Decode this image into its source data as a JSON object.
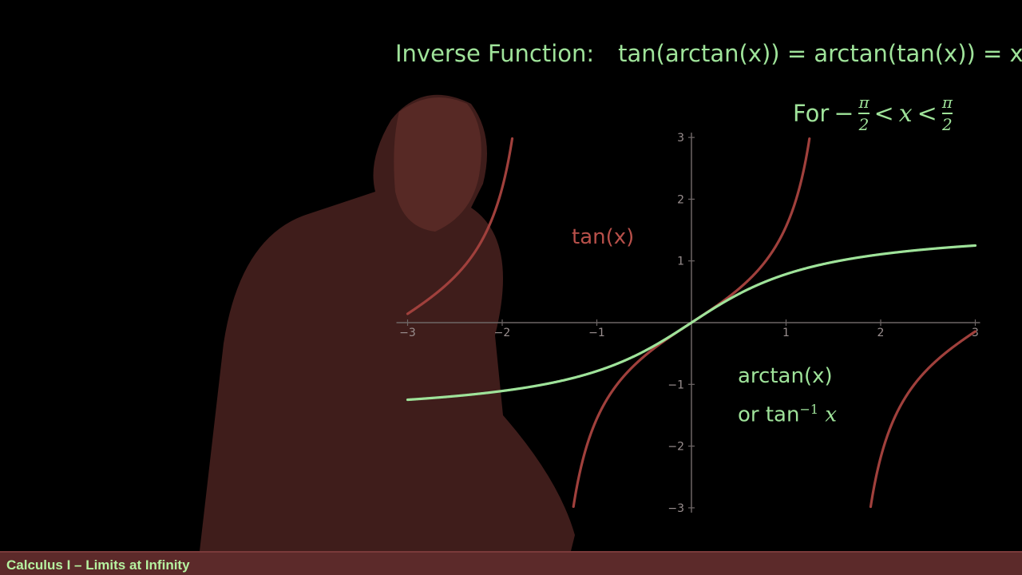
{
  "header": {
    "inverse_label": "Inverse Function:",
    "identity": "tan(arctan(x)) = arctan(tan(x)) = x",
    "domain_for": "For",
    "domain_minus": "−",
    "domain_lt1": "<",
    "domain_var": "x",
    "domain_lt2": "<",
    "domain_num": "π",
    "domain_den": "2"
  },
  "labels": {
    "tan": "tan(x)",
    "arctan_line1": "arctan(x)",
    "arctan_line2_prefix": "or tan",
    "arctan_line2_sup": "−1",
    "arctan_line2_var": "x"
  },
  "footer": {
    "title": "Calculus I – Limits at Infinity"
  },
  "colors": {
    "tan_curve": "#a0403c",
    "arctan_curve": "#9fe39a",
    "axis": "#6e6666"
  },
  "chart_data": {
    "type": "line",
    "xlim": [
      -3,
      3
    ],
    "ylim": [
      -3,
      3
    ],
    "x_ticks": [
      -3,
      -2,
      -1,
      1,
      2,
      3
    ],
    "y_ticks": [
      -3,
      -2,
      -1,
      1,
      2,
      3
    ],
    "x_tick_labels": [
      "−3",
      "−2",
      "−1",
      "1",
      "2",
      "3"
    ],
    "y_tick_labels": [
      "−3",
      "−2",
      "−1",
      "1",
      "2",
      "3"
    ],
    "grid": false,
    "series": [
      {
        "name": "tan(x)",
        "function": "tan",
        "color": "#a0403c",
        "x": [
          -3.0,
          -2.5,
          -2.0,
          -1.5708,
          -1.25,
          -1.0,
          -0.5,
          0.0,
          0.5,
          1.0,
          1.25,
          1.5708,
          2.0,
          2.5,
          3.0
        ],
        "y": [
          0.14,
          0.75,
          2.19,
          null,
          -3.01,
          -1.56,
          -0.55,
          0.0,
          0.55,
          1.56,
          3.01,
          null,
          -2.19,
          -0.75,
          -0.14
        ]
      },
      {
        "name": "arctan(x)",
        "function": "arctan",
        "color": "#9fe39a",
        "x": [
          -3.0,
          -2.0,
          -1.0,
          -0.5,
          0.0,
          0.5,
          1.0,
          2.0,
          3.0
        ],
        "y": [
          -1.25,
          -1.11,
          -0.79,
          -0.46,
          0.0,
          0.46,
          0.79,
          1.11,
          1.25
        ]
      }
    ]
  }
}
